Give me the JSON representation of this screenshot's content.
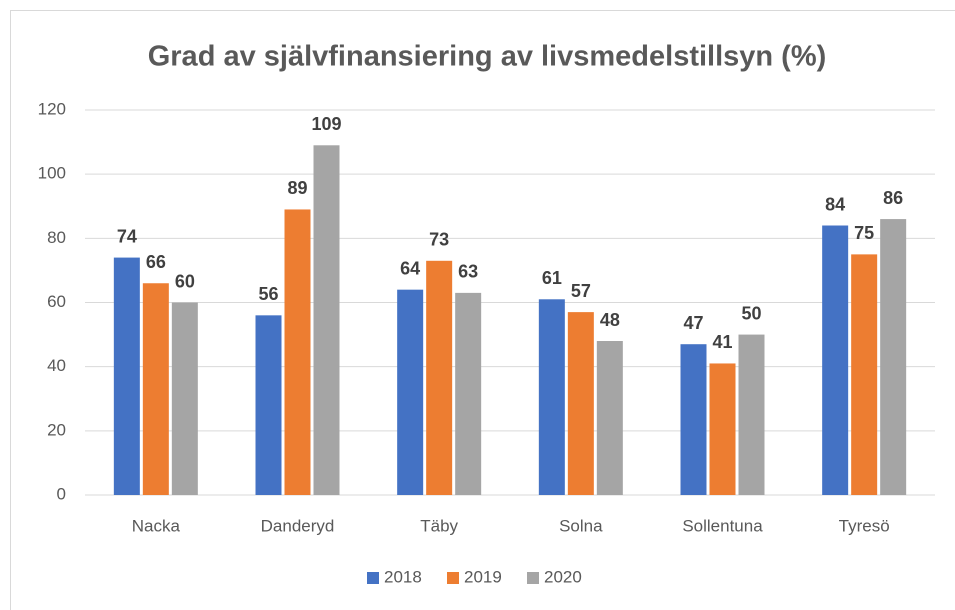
{
  "chart_data": {
    "type": "bar",
    "title": "Grad av självfinansiering av livsmedelstillsyn (%)",
    "categories": [
      "Nacka",
      "Danderyd",
      "Täby",
      "Solna",
      "Sollentuna",
      "Tyresö"
    ],
    "series": [
      {
        "name": "2018",
        "color": "#4472c4",
        "values": [
          74,
          56,
          64,
          61,
          47,
          84
        ]
      },
      {
        "name": "2019",
        "color": "#ed7d31",
        "values": [
          66,
          89,
          73,
          57,
          41,
          75
        ]
      },
      {
        "name": "2020",
        "color": "#a5a5a5",
        "values": [
          60,
          109,
          63,
          48,
          50,
          86
        ]
      }
    ],
    "ylim": [
      0,
      120
    ],
    "yticks": [
      0,
      20,
      40,
      60,
      80,
      100,
      120
    ],
    "grid": true,
    "legend": "bottom"
  }
}
